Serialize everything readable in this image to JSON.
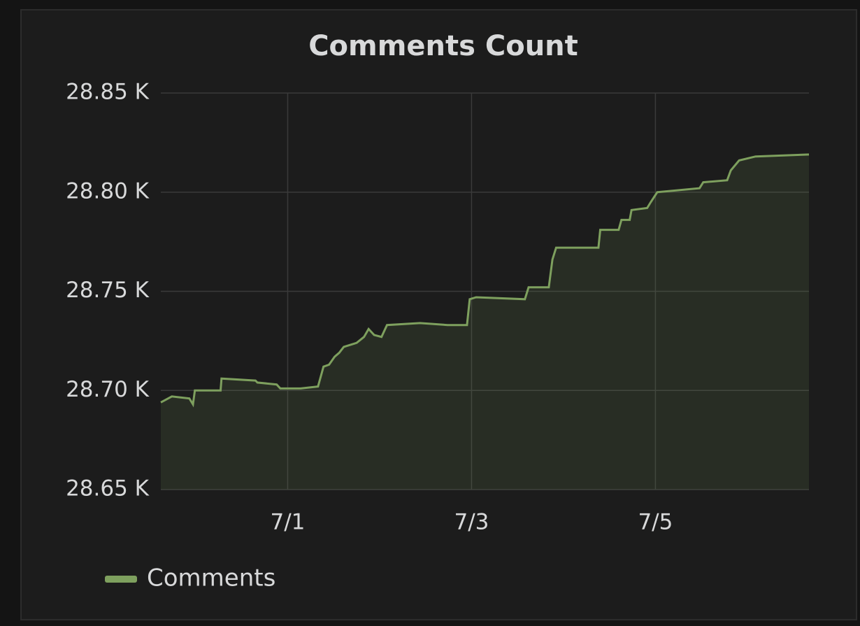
{
  "chart_data": {
    "type": "area",
    "title": "Comments Count",
    "x": [
      -0.38,
      -0.26,
      -0.07,
      -0.03,
      -0.01,
      0.27,
      0.28,
      0.65,
      0.67,
      0.88,
      0.92,
      1.14,
      1.33,
      1.39,
      1.45,
      1.51,
      1.56,
      1.61,
      1.75,
      1.83,
      1.88,
      1.94,
      2.02,
      2.08,
      2.44,
      2.74,
      2.95,
      2.98,
      3.05,
      3.58,
      3.62,
      3.84,
      3.88,
      3.92,
      4.38,
      4.4,
      4.6,
      4.63,
      4.72,
      4.74,
      4.91,
      4.95,
      5.02,
      5.48,
      5.52,
      5.78,
      5.82,
      5.91,
      6.09,
      6.67
    ],
    "series": [
      {
        "name": "Comments",
        "color": "#7ea05e",
        "values": [
          28694,
          28697,
          28696,
          28693,
          28700,
          28700,
          28706,
          28705,
          28704,
          28703,
          28701,
          28701,
          28702,
          28712,
          28713,
          28717,
          28719,
          28722,
          28724,
          28727,
          28731,
          28728,
          28727,
          28733,
          28734,
          28733,
          28733,
          28746,
          28747,
          28746,
          28752,
          28752,
          28766,
          28772,
          28772,
          28781,
          28781,
          28786,
          28786,
          28791,
          28792,
          28795,
          28800,
          28802,
          28805,
          28806,
          28811,
          28816,
          28818,
          28819
        ]
      }
    ],
    "xlim": [
      -0.38,
      6.67
    ],
    "xticks": [
      {
        "value": 1,
        "label": "7/1"
      },
      {
        "value": 3,
        "label": "7/3"
      },
      {
        "value": 5,
        "label": "7/5"
      }
    ],
    "ylim": [
      28650,
      28850
    ],
    "yticks": [
      {
        "value": 28650,
        "label": "28.65 K"
      },
      {
        "value": 28700,
        "label": "28.70 K"
      },
      {
        "value": 28750,
        "label": "28.75 K"
      },
      {
        "value": 28800,
        "label": "28.80 K"
      },
      {
        "value": 28850,
        "label": "28.85 K"
      }
    ],
    "grid": true,
    "legend": "bottom-left"
  }
}
